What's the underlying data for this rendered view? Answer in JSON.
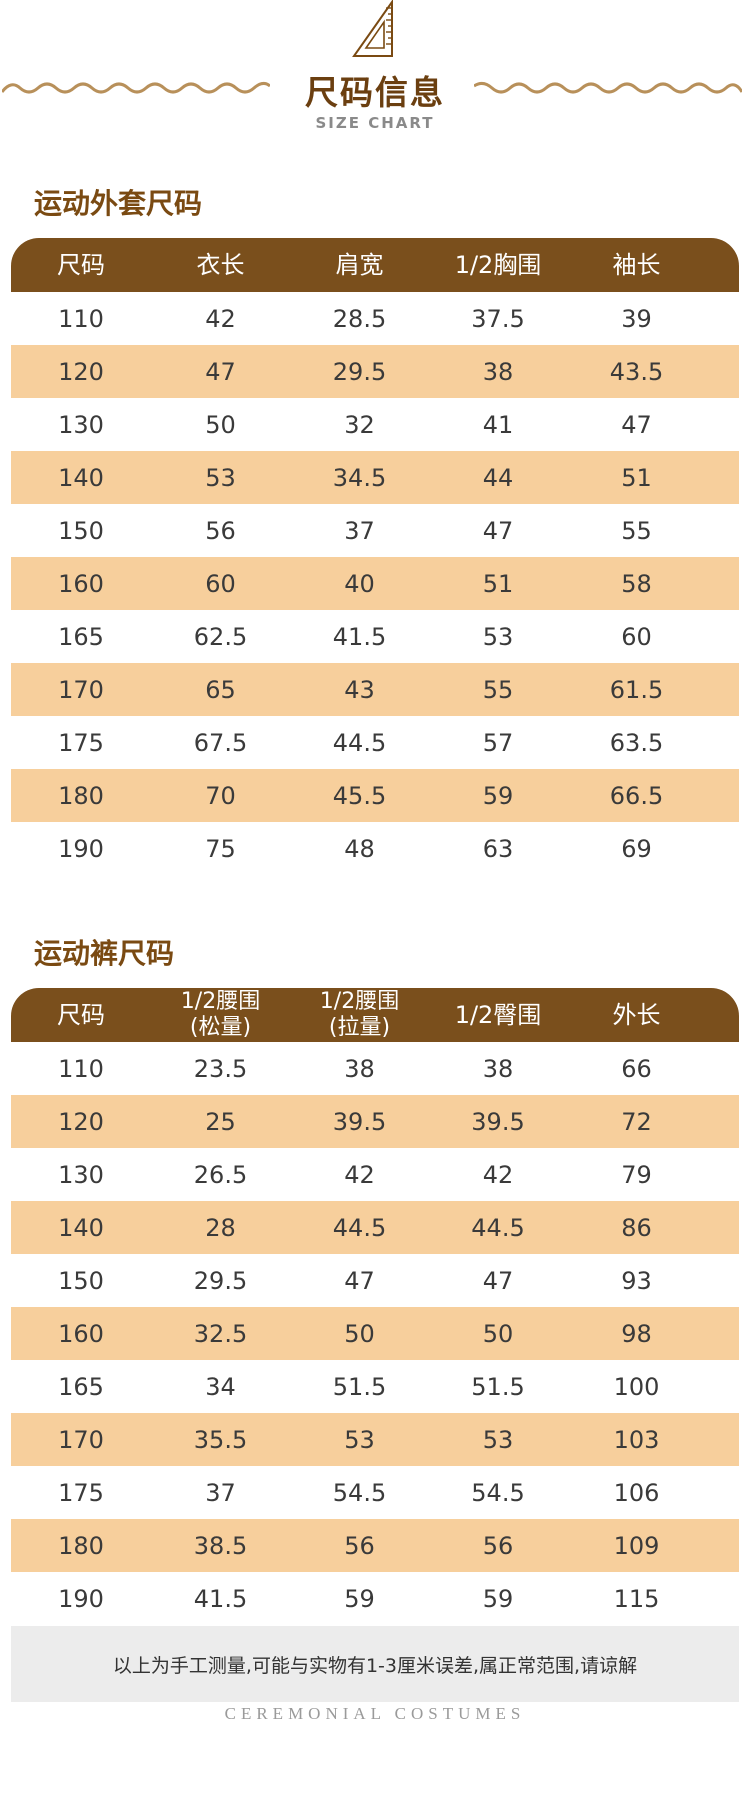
{
  "header": {
    "title": "尺码信息",
    "subtitle": "SIZE CHART",
    "icon": "ruler-triangle-icon"
  },
  "colors": {
    "brown_title": "#6b3f10",
    "header_bar": "#7a4f1c",
    "stripe": "#f7cf9c",
    "note_bg": "#ececec"
  },
  "jacket": {
    "title": "运动外套尺码",
    "headers": [
      "尺码",
      "衣长",
      "肩宽",
      "1/2胸围",
      "袖长"
    ],
    "rows": [
      [
        "110",
        "42",
        "28.5",
        "37.5",
        "39"
      ],
      [
        "120",
        "47",
        "29.5",
        "38",
        "43.5"
      ],
      [
        "130",
        "50",
        "32",
        "41",
        "47"
      ],
      [
        "140",
        "53",
        "34.5",
        "44",
        "51"
      ],
      [
        "150",
        "56",
        "37",
        "47",
        "55"
      ],
      [
        "160",
        "60",
        "40",
        "51",
        "58"
      ],
      [
        "165",
        "62.5",
        "41.5",
        "53",
        "60"
      ],
      [
        "170",
        "65",
        "43",
        "55",
        "61.5"
      ],
      [
        "175",
        "67.5",
        "44.5",
        "57",
        "63.5"
      ],
      [
        "180",
        "70",
        "45.5",
        "59",
        "66.5"
      ],
      [
        "190",
        "75",
        "48",
        "63",
        "69"
      ]
    ]
  },
  "pants": {
    "title": "运动裤尺码",
    "headers": [
      [
        "尺码"
      ],
      [
        "1/2腰围",
        "(松量)"
      ],
      [
        "1/2腰围",
        "(拉量)"
      ],
      [
        "1/2臀围"
      ],
      [
        "外长"
      ]
    ],
    "rows": [
      [
        "110",
        "23.5",
        "38",
        "38",
        "66"
      ],
      [
        "120",
        "25",
        "39.5",
        "39.5",
        "72"
      ],
      [
        "130",
        "26.5",
        "42",
        "42",
        "79"
      ],
      [
        "140",
        "28",
        "44.5",
        "44.5",
        "86"
      ],
      [
        "150",
        "29.5",
        "47",
        "47",
        "93"
      ],
      [
        "160",
        "32.5",
        "50",
        "50",
        "98"
      ],
      [
        "165",
        "34",
        "51.5",
        "51.5",
        "100"
      ],
      [
        "170",
        "35.5",
        "53",
        "53",
        "103"
      ],
      [
        "175",
        "37",
        "54.5",
        "54.5",
        "106"
      ],
      [
        "180",
        "38.5",
        "56",
        "56",
        "109"
      ],
      [
        "190",
        "41.5",
        "59",
        "59",
        "115"
      ]
    ]
  },
  "note": "以上为手工测量,可能与实物有1-3厘米误差,属正常范围,请谅解",
  "footer": "CEREMONIAL COSTUMES"
}
